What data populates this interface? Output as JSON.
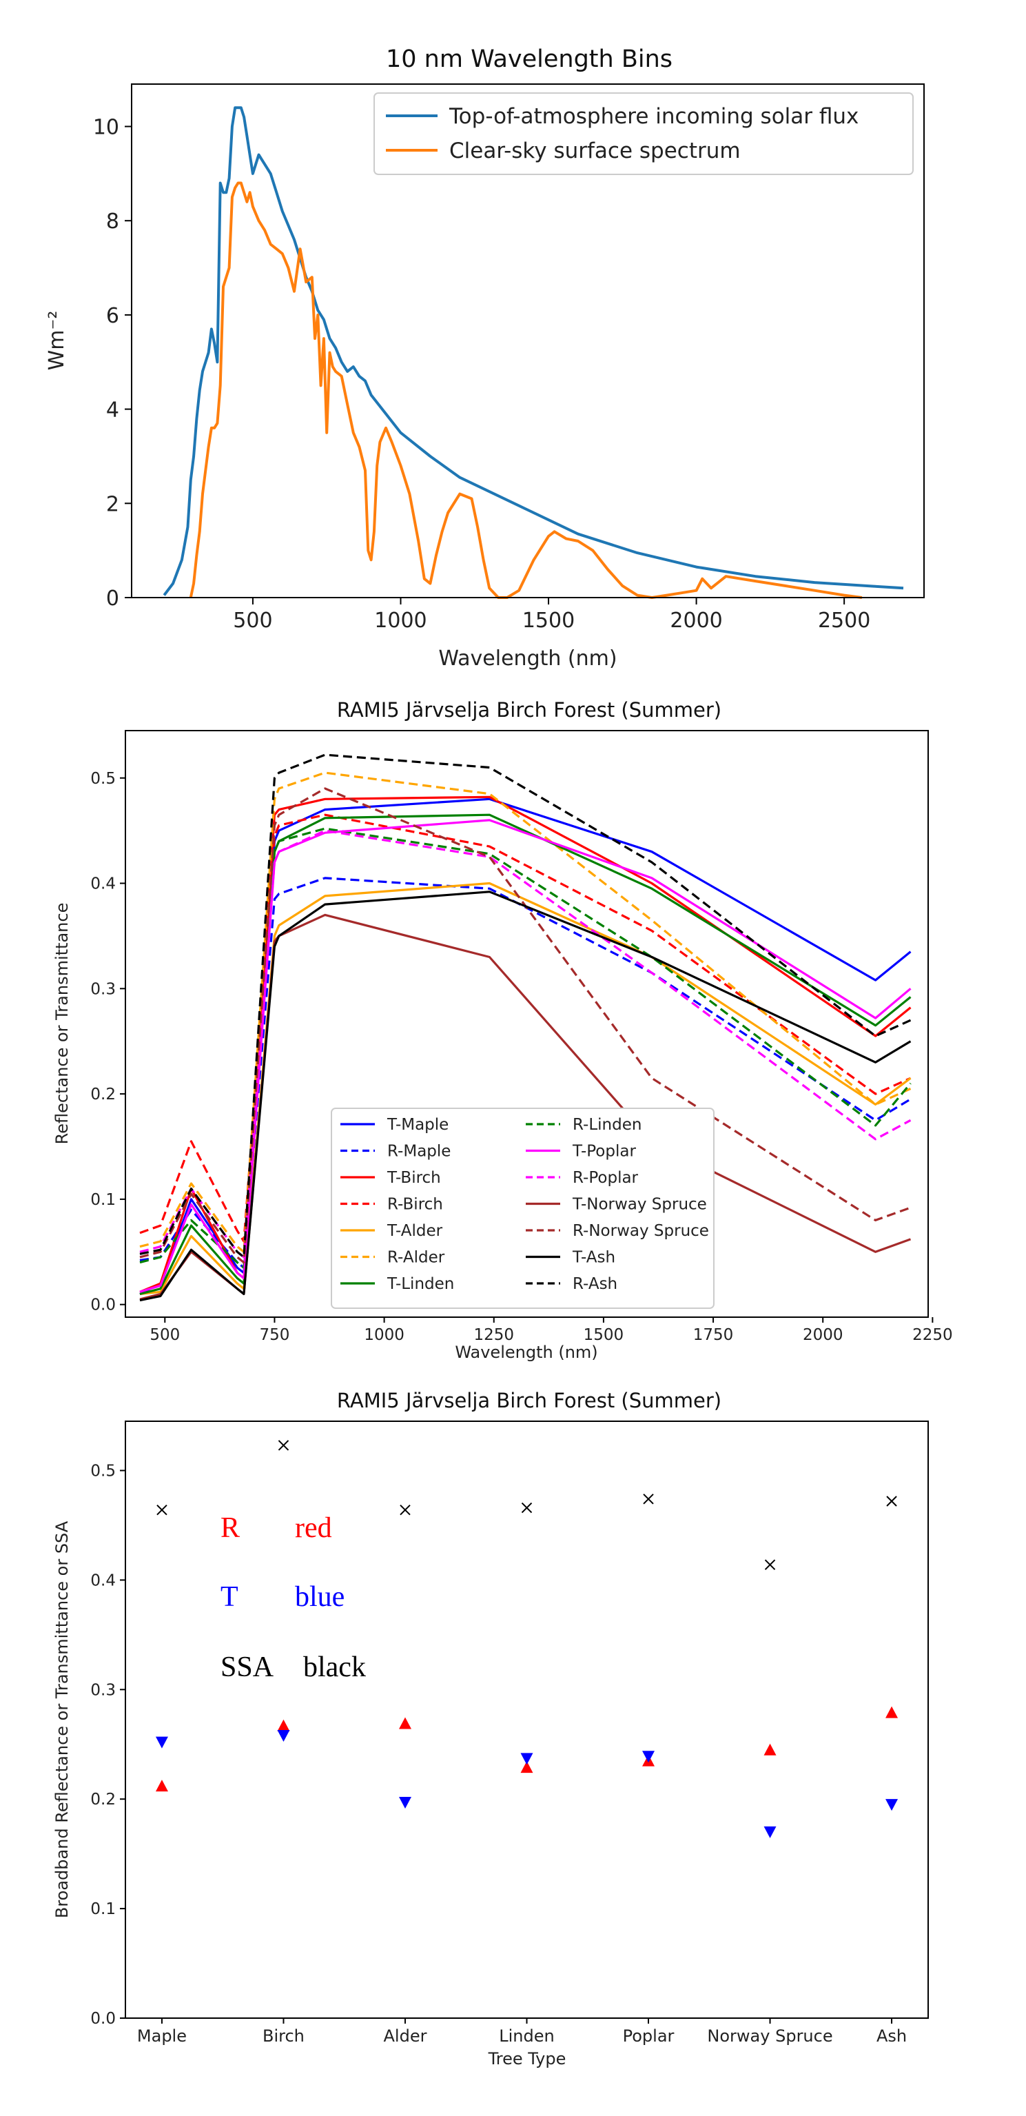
{
  "chart_data": [
    {
      "type": "line",
      "title": "10 nm Wavelength Bins",
      "xlabel": "Wavelength (nm)",
      "ylabel": "Wm⁻²",
      "xlim": [
        90,
        2770
      ],
      "ylim": [
        0,
        10.9
      ],
      "xticks": [
        500,
        1000,
        1500,
        2000,
        2500
      ],
      "yticks": [
        0,
        2,
        4,
        6,
        8,
        10
      ],
      "legend": "top-right",
      "series": [
        {
          "name": "Top-of-atmosphere incoming solar flux",
          "color": "#1f77b4",
          "x": [
            200,
            230,
            260,
            280,
            290,
            300,
            310,
            320,
            330,
            340,
            350,
            360,
            370,
            380,
            390,
            400,
            410,
            420,
            430,
            440,
            450,
            460,
            470,
            480,
            490,
            500,
            520,
            540,
            560,
            580,
            600,
            620,
            640,
            660,
            680,
            700,
            720,
            740,
            760,
            780,
            800,
            820,
            840,
            860,
            880,
            900,
            950,
            1000,
            1100,
            1200,
            1300,
            1400,
            1500,
            1600,
            1800,
            2000,
            2200,
            2400,
            2600,
            2700
          ],
          "y": [
            0.05,
            0.3,
            0.8,
            1.5,
            2.5,
            3.0,
            3.8,
            4.4,
            4.8,
            5.0,
            5.2,
            5.7,
            5.4,
            5.0,
            8.8,
            8.6,
            8.6,
            8.9,
            10.0,
            10.4,
            10.4,
            10.4,
            10.2,
            9.8,
            9.4,
            9.0,
            9.4,
            9.2,
            9.0,
            8.6,
            8.2,
            7.9,
            7.6,
            7.2,
            6.8,
            6.5,
            6.1,
            5.9,
            5.5,
            5.3,
            5.0,
            4.8,
            4.9,
            4.7,
            4.6,
            4.3,
            3.9,
            3.5,
            3.0,
            2.55,
            2.25,
            1.95,
            1.65,
            1.35,
            0.95,
            0.65,
            0.45,
            0.32,
            0.24,
            0.2
          ]
        },
        {
          "name": "Clear-sky surface spectrum",
          "color": "#ff7f0e",
          "x": [
            290,
            300,
            310,
            320,
            330,
            340,
            350,
            360,
            370,
            380,
            390,
            400,
            410,
            420,
            430,
            440,
            450,
            460,
            470,
            480,
            490,
            500,
            520,
            540,
            560,
            580,
            600,
            620,
            640,
            660,
            680,
            700,
            710,
            720,
            730,
            740,
            750,
            760,
            770,
            780,
            800,
            820,
            840,
            860,
            880,
            890,
            900,
            910,
            920,
            930,
            950,
            970,
            1000,
            1030,
            1060,
            1080,
            1100,
            1120,
            1140,
            1160,
            1200,
            1240,
            1260,
            1280,
            1300,
            1330,
            1360,
            1400,
            1450,
            1500,
            1520,
            1560,
            1600,
            1650,
            1700,
            1750,
            1800,
            1850,
            1900,
            1950,
            2000,
            2020,
            2050,
            2100,
            2150,
            2200,
            2300,
            2400,
            2500,
            2560
          ],
          "y": [
            0.0,
            0.3,
            0.9,
            1.4,
            2.2,
            2.7,
            3.2,
            3.6,
            3.6,
            3.7,
            4.5,
            6.6,
            6.8,
            7.0,
            8.5,
            8.7,
            8.8,
            8.8,
            8.6,
            8.4,
            8.6,
            8.3,
            8.0,
            7.8,
            7.5,
            7.4,
            7.3,
            7.0,
            6.5,
            7.4,
            6.7,
            6.8,
            5.5,
            6.0,
            4.5,
            5.5,
            3.5,
            5.2,
            4.9,
            4.8,
            4.7,
            4.1,
            3.5,
            3.2,
            2.7,
            1.0,
            0.8,
            1.4,
            2.8,
            3.3,
            3.6,
            3.3,
            2.8,
            2.2,
            1.2,
            0.4,
            0.3,
            0.9,
            1.4,
            1.8,
            2.2,
            2.1,
            1.5,
            0.8,
            0.2,
            0.0,
            0.0,
            0.15,
            0.8,
            1.3,
            1.4,
            1.25,
            1.2,
            1.0,
            0.6,
            0.25,
            0.05,
            0.0,
            0.05,
            0.1,
            0.15,
            0.4,
            0.2,
            0.45,
            0.4,
            0.35,
            0.25,
            0.15,
            0.05,
            0.0
          ]
        }
      ]
    },
    {
      "type": "line",
      "title": "RAMI5 Järvselja Birch Forest (Summer)",
      "xlabel": "Wavelength (nm)",
      "ylabel": "Reflectance or Transmittance",
      "xlim": [
        410,
        2240
      ],
      "ylim": [
        -0.012,
        0.545
      ],
      "xticks": [
        500,
        750,
        1000,
        1250,
        1500,
        1750,
        2000,
        2250
      ],
      "yticks": [
        0.0,
        0.1,
        0.2,
        0.3,
        0.4,
        0.5
      ],
      "legend": "lower-center",
      "x": [
        443,
        490,
        560,
        665,
        680,
        750,
        760,
        865,
        1240,
        1610,
        2120,
        2200
      ],
      "series": [
        {
          "name": "T-Maple",
          "color": "#0000ff",
          "dash": "solid",
          "values": [
            0.01,
            0.02,
            0.1,
            0.035,
            0.03,
            0.44,
            0.45,
            0.47,
            0.48,
            0.43,
            0.308,
            0.335
          ]
        },
        {
          "name": "R-Maple",
          "color": "#0000ff",
          "dash": "dashed",
          "values": [
            0.042,
            0.045,
            0.09,
            0.04,
            0.035,
            0.385,
            0.39,
            0.405,
            0.395,
            0.315,
            0.175,
            0.195
          ]
        },
        {
          "name": "T-Birch",
          "color": "#ff0000",
          "dash": "solid",
          "values": [
            0.012,
            0.02,
            0.11,
            0.03,
            0.025,
            0.465,
            0.47,
            0.48,
            0.482,
            0.4,
            0.255,
            0.282
          ]
        },
        {
          "name": "R-Birch",
          "color": "#ff0000",
          "dash": "dashed",
          "values": [
            0.068,
            0.075,
            0.155,
            0.07,
            0.06,
            0.445,
            0.455,
            0.465,
            0.435,
            0.355,
            0.2,
            0.215
          ]
        },
        {
          "name": "T-Alder",
          "color": "#ffa500",
          "dash": "solid",
          "values": [
            0.01,
            0.012,
            0.065,
            0.02,
            0.015,
            0.35,
            0.36,
            0.388,
            0.4,
            0.33,
            0.19,
            0.215
          ]
        },
        {
          "name": "R-Alder",
          "color": "#ffa500",
          "dash": "dashed",
          "values": [
            0.055,
            0.06,
            0.115,
            0.055,
            0.05,
            0.48,
            0.49,
            0.505,
            0.485,
            0.365,
            0.19,
            0.205
          ]
        },
        {
          "name": "T-Linden",
          "color": "#008000",
          "dash": "solid",
          "values": [
            0.01,
            0.015,
            0.075,
            0.025,
            0.02,
            0.43,
            0.44,
            0.462,
            0.465,
            0.395,
            0.265,
            0.292
          ]
        },
        {
          "name": "R-Linden",
          "color": "#008000",
          "dash": "dashed",
          "values": [
            0.04,
            0.045,
            0.08,
            0.04,
            0.035,
            0.43,
            0.44,
            0.452,
            0.428,
            0.33,
            0.17,
            0.21
          ]
        },
        {
          "name": "T-Poplar",
          "color": "#ff00ff",
          "dash": "solid",
          "values": [
            0.012,
            0.018,
            0.095,
            0.03,
            0.025,
            0.42,
            0.43,
            0.448,
            0.46,
            0.405,
            0.272,
            0.3
          ]
        },
        {
          "name": "R-Poplar",
          "color": "#ff00ff",
          "dash": "dashed",
          "values": [
            0.05,
            0.055,
            0.11,
            0.05,
            0.045,
            0.42,
            0.43,
            0.45,
            0.425,
            0.315,
            0.157,
            0.175
          ]
        },
        {
          "name": "T-Norway Spruce",
          "color": "#a52a2a",
          "dash": "solid",
          "values": [
            0.005,
            0.01,
            0.05,
            0.015,
            0.01,
            0.345,
            0.35,
            0.37,
            0.33,
            0.155,
            0.05,
            0.062
          ]
        },
        {
          "name": "R-Norway Spruce",
          "color": "#a52a2a",
          "dash": "dashed",
          "values": [
            0.045,
            0.05,
            0.105,
            0.045,
            0.04,
            0.455,
            0.465,
            0.49,
            0.425,
            0.215,
            0.08,
            0.092
          ]
        },
        {
          "name": "T-Ash",
          "color": "#000000",
          "dash": "solid",
          "values": [
            0.004,
            0.008,
            0.052,
            0.015,
            0.01,
            0.34,
            0.35,
            0.38,
            0.392,
            0.33,
            0.23,
            0.25
          ]
        },
        {
          "name": "R-Ash",
          "color": "#000000",
          "dash": "dashed",
          "values": [
            0.048,
            0.052,
            0.11,
            0.05,
            0.045,
            0.5,
            0.505,
            0.522,
            0.51,
            0.42,
            0.255,
            0.27
          ]
        }
      ]
    },
    {
      "type": "scatter",
      "title": "RAMI5 Järvselja Birch Forest (Summer)",
      "xlabel": "Tree Type",
      "ylabel": "Broadband Reflectance or Transmittance or SSA",
      "categories": [
        "Maple",
        "Birch",
        "Alder",
        "Linden",
        "Poplar",
        "Norway Spruce",
        "Ash"
      ],
      "ylim": [
        0.0,
        0.545
      ],
      "yticks": [
        0.0,
        0.1,
        0.2,
        0.3,
        0.4,
        0.5
      ],
      "series": [
        {
          "name": "R",
          "color": "#ff0000",
          "marker": "triangle-up",
          "values": [
            0.212,
            0.267,
            0.269,
            0.229,
            0.235,
            0.245,
            0.279
          ]
        },
        {
          "name": "T",
          "color": "#0000ff",
          "marker": "triangle-down",
          "values": [
            0.252,
            0.258,
            0.197,
            0.237,
            0.239,
            0.17,
            0.195
          ]
        },
        {
          "name": "SSA",
          "color": "#000000",
          "marker": "x",
          "values": [
            0.464,
            0.523,
            0.464,
            0.466,
            0.474,
            0.414,
            0.472
          ]
        }
      ],
      "annotations": [
        {
          "label": "R",
          "desc": "red",
          "color": "#ff0000"
        },
        {
          "label": "T",
          "desc": "blue",
          "color": "#0000ff"
        },
        {
          "label": "SSA",
          "desc": "black",
          "color": "#000000"
        }
      ]
    }
  ]
}
